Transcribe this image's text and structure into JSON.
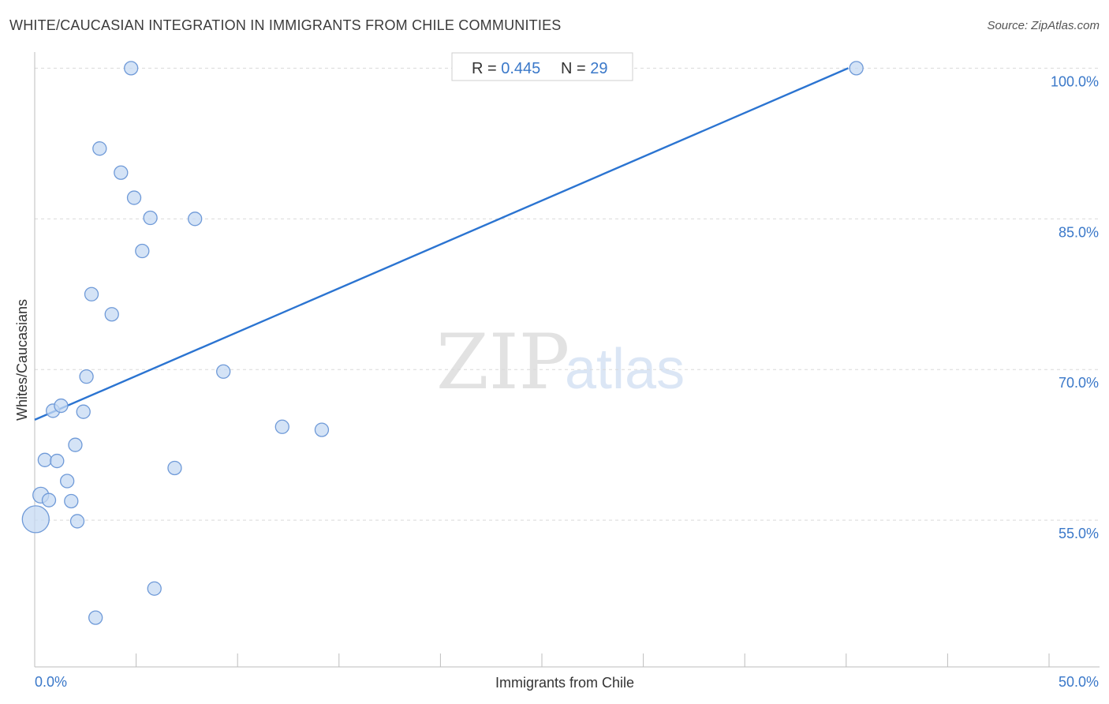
{
  "title": "WHITE/CAUCASIAN INTEGRATION IN IMMIGRANTS FROM CHILE COMMUNITIES",
  "source": "Source: ZipAtlas.com",
  "watermark": {
    "zip": "ZIP",
    "atlas": "atlas"
  },
  "stats": {
    "r_label": "R = ",
    "r_value": "0.445",
    "n_label": "N = ",
    "n_value": "29"
  },
  "colors": {
    "accent": "#3a78c9",
    "trend": "#2b74d1",
    "point_fill": "#c5d9f3",
    "point_stroke": "#6f9ad8"
  },
  "chart_data": {
    "type": "scatter",
    "title": "WHITE/CAUCASIAN INTEGRATION IN IMMIGRANTS FROM CHILE COMMUNITIES",
    "xlabel": "Immigrants from Chile",
    "ylabel": "Whites/Caucasians",
    "xlim": [
      0,
      50
    ],
    "ylim": [
      40.4,
      101.6
    ],
    "x_tick_labels": [
      {
        "value": 0,
        "label": "0.0%"
      },
      {
        "value": 50,
        "label": "50.0%"
      }
    ],
    "x_minor_ticks": [
      5,
      10,
      15,
      20,
      25,
      30,
      35,
      40,
      45,
      50
    ],
    "y_ticks": [
      {
        "value": 55,
        "label": "55.0%"
      },
      {
        "value": 70,
        "label": "70.0%"
      },
      {
        "value": 85,
        "label": "85.0%"
      },
      {
        "value": 100,
        "label": "100.0%"
      }
    ],
    "y_gridlines": [
      55,
      70,
      85,
      100
    ],
    "trendline": {
      "x": [
        0,
        40.1
      ],
      "y": [
        65.0,
        100.0
      ]
    },
    "points": [
      {
        "x": 0.05,
        "y": 55.1,
        "size": "large"
      },
      {
        "x": 0.3,
        "y": 57.5,
        "size": "medium"
      },
      {
        "x": 0.5,
        "y": 61.0,
        "size": "small"
      },
      {
        "x": 0.7,
        "y": 57.0,
        "size": "small"
      },
      {
        "x": 0.9,
        "y": 65.9,
        "size": "small"
      },
      {
        "x": 1.1,
        "y": 60.9,
        "size": "small"
      },
      {
        "x": 1.3,
        "y": 66.4,
        "size": "small"
      },
      {
        "x": 1.6,
        "y": 58.9,
        "size": "small"
      },
      {
        "x": 1.8,
        "y": 56.9,
        "size": "small"
      },
      {
        "x": 2.0,
        "y": 62.5,
        "size": "small"
      },
      {
        "x": 2.1,
        "y": 54.9,
        "size": "small"
      },
      {
        "x": 2.4,
        "y": 65.8,
        "size": "small"
      },
      {
        "x": 2.55,
        "y": 69.3,
        "size": "small"
      },
      {
        "x": 2.8,
        "y": 77.5,
        "size": "small"
      },
      {
        "x": 3.0,
        "y": 45.3,
        "size": "small"
      },
      {
        "x": 3.2,
        "y": 92.0,
        "size": "small"
      },
      {
        "x": 3.8,
        "y": 75.5,
        "size": "small"
      },
      {
        "x": 4.25,
        "y": 89.6,
        "size": "small"
      },
      {
        "x": 4.75,
        "y": 100.0,
        "size": "small"
      },
      {
        "x": 4.9,
        "y": 87.1,
        "size": "small"
      },
      {
        "x": 5.3,
        "y": 81.8,
        "size": "small"
      },
      {
        "x": 5.7,
        "y": 85.1,
        "size": "small"
      },
      {
        "x": 5.9,
        "y": 48.2,
        "size": "small"
      },
      {
        "x": 6.9,
        "y": 60.2,
        "size": "small"
      },
      {
        "x": 7.9,
        "y": 85.0,
        "size": "small"
      },
      {
        "x": 9.3,
        "y": 69.8,
        "size": "small"
      },
      {
        "x": 12.2,
        "y": 64.3,
        "size": "small"
      },
      {
        "x": 14.15,
        "y": 64.0,
        "size": "small"
      },
      {
        "x": 40.5,
        "y": 100.0,
        "size": "small"
      }
    ]
  }
}
